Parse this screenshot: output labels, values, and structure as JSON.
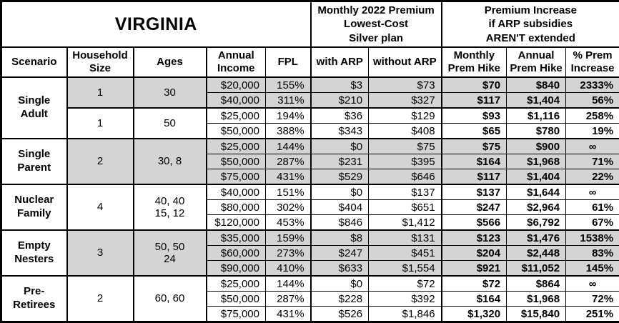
{
  "title": "VIRGINIA",
  "header": {
    "premium_group": "Monthly 2022 Premium\nLowest-Cost\nSilver plan",
    "increase_group": "Premium Increase\nif ARP subsidies\nAREN'T extended"
  },
  "columns": [
    "Scenario",
    "Household\nSize",
    "Ages",
    "Annual\nIncome",
    "FPL",
    "with ARP",
    "without ARP",
    "Monthly\nPrem Hike",
    "Annual\nPrem Hike",
    "% Prem\nIncrease"
  ],
  "colors": {
    "shaded_row": "#d4d4d4",
    "border": "#000000",
    "background": "#ffffff",
    "text": "#000000"
  },
  "groups": [
    {
      "scenario": "Single\nAdult",
      "subgroups": [
        {
          "household_size": "1",
          "ages": "30",
          "shaded": true,
          "rows": [
            {
              "income": "$20,000",
              "fpl": "155%",
              "with_arp": "$3",
              "without_arp": "$73",
              "monthly_hike": "$70",
              "annual_hike": "$840",
              "pct_increase": "2333%"
            },
            {
              "income": "$40,000",
              "fpl": "311%",
              "with_arp": "$210",
              "without_arp": "$327",
              "monthly_hike": "$117",
              "annual_hike": "$1,404",
              "pct_increase": "56%"
            }
          ]
        },
        {
          "household_size": "1",
          "ages": "50",
          "shaded": false,
          "rows": [
            {
              "income": "$25,000",
              "fpl": "194%",
              "with_arp": "$36",
              "without_arp": "$129",
              "monthly_hike": "$93",
              "annual_hike": "$1,116",
              "pct_increase": "258%"
            },
            {
              "income": "$50,000",
              "fpl": "388%",
              "with_arp": "$343",
              "without_arp": "$408",
              "monthly_hike": "$65",
              "annual_hike": "$780",
              "pct_increase": "19%"
            }
          ]
        }
      ]
    },
    {
      "scenario": "Single\nParent",
      "subgroups": [
        {
          "household_size": "2",
          "ages": "30, 8",
          "shaded": true,
          "rows": [
            {
              "income": "$25,000",
              "fpl": "144%",
              "with_arp": "$0",
              "without_arp": "$75",
              "monthly_hike": "$75",
              "annual_hike": "$900",
              "pct_increase": "∞"
            },
            {
              "income": "$50,000",
              "fpl": "287%",
              "with_arp": "$231",
              "without_arp": "$395",
              "monthly_hike": "$164",
              "annual_hike": "$1,968",
              "pct_increase": "71%"
            },
            {
              "income": "$75,000",
              "fpl": "431%",
              "with_arp": "$529",
              "without_arp": "$646",
              "monthly_hike": "$117",
              "annual_hike": "$1,404",
              "pct_increase": "22%"
            }
          ]
        }
      ]
    },
    {
      "scenario": "Nuclear\nFamily",
      "subgroups": [
        {
          "household_size": "4",
          "ages": "40, 40\n15, 12",
          "shaded": false,
          "rows": [
            {
              "income": "$40,000",
              "fpl": "151%",
              "with_arp": "$0",
              "without_arp": "$137",
              "monthly_hike": "$137",
              "annual_hike": "$1,644",
              "pct_increase": "∞"
            },
            {
              "income": "$80,000",
              "fpl": "302%",
              "with_arp": "$404",
              "without_arp": "$651",
              "monthly_hike": "$247",
              "annual_hike": "$2,964",
              "pct_increase": "61%"
            },
            {
              "income": "$120,000",
              "fpl": "453%",
              "with_arp": "$846",
              "without_arp": "$1,412",
              "monthly_hike": "$566",
              "annual_hike": "$6,792",
              "pct_increase": "67%"
            }
          ]
        }
      ]
    },
    {
      "scenario": "Empty\nNesters",
      "subgroups": [
        {
          "household_size": "3",
          "ages": "50, 50\n24",
          "shaded": true,
          "rows": [
            {
              "income": "$35,000",
              "fpl": "159%",
              "with_arp": "$8",
              "without_arp": "$131",
              "monthly_hike": "$123",
              "annual_hike": "$1,476",
              "pct_increase": "1538%"
            },
            {
              "income": "$60,000",
              "fpl": "273%",
              "with_arp": "$247",
              "without_arp": "$451",
              "monthly_hike": "$204",
              "annual_hike": "$2,448",
              "pct_increase": "83%"
            },
            {
              "income": "$90,000",
              "fpl": "410%",
              "with_arp": "$633",
              "without_arp": "$1,554",
              "monthly_hike": "$921",
              "annual_hike": "$11,052",
              "pct_increase": "145%"
            }
          ]
        }
      ]
    },
    {
      "scenario": "Pre-\nRetirees",
      "subgroups": [
        {
          "household_size": "2",
          "ages": "60, 60",
          "shaded": false,
          "rows": [
            {
              "income": "$25,000",
              "fpl": "144%",
              "with_arp": "$0",
              "without_arp": "$72",
              "monthly_hike": "$72",
              "annual_hike": "$864",
              "pct_increase": "∞"
            },
            {
              "income": "$50,000",
              "fpl": "287%",
              "with_arp": "$228",
              "without_arp": "$392",
              "monthly_hike": "$164",
              "annual_hike": "$1,968",
              "pct_increase": "72%"
            },
            {
              "income": "$75,000",
              "fpl": "431%",
              "with_arp": "$526",
              "without_arp": "$1,846",
              "monthly_hike": "$1,320",
              "annual_hike": "$15,840",
              "pct_increase": "251%"
            }
          ]
        }
      ]
    }
  ]
}
